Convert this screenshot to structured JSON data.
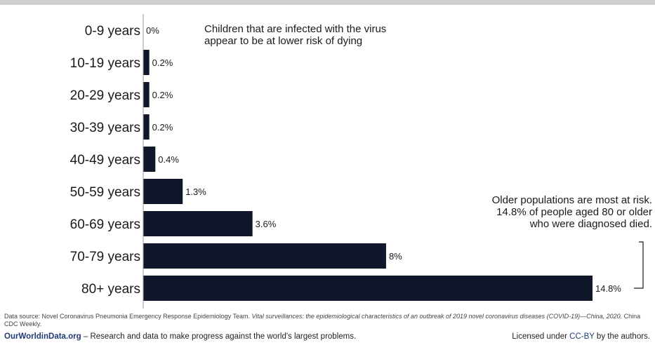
{
  "chart_data": {
    "type": "bar",
    "orientation": "horizontal",
    "categories": [
      "0-9 years",
      "10-19 years",
      "20-29 years",
      "30-39 years",
      "40-49 years",
      "50-59 years",
      "60-69 years",
      "70-79 years",
      "80+ years"
    ],
    "values": [
      0,
      0.2,
      0.2,
      0.2,
      0.4,
      1.3,
      3.6,
      8,
      14.8
    ],
    "value_labels": [
      "0%",
      "0.2%",
      "0.2%",
      "0.2%",
      "0.4%",
      "1.3%",
      "3.6%",
      "8%",
      "14.8%"
    ],
    "xlim": [
      0,
      14.8
    ],
    "bar_color": "#10172a",
    "grid": false,
    "annotations": [
      {
        "id": "children-note",
        "lines": [
          "Children that are infected with the virus",
          "appear to be at lower risk of dying"
        ]
      },
      {
        "id": "older-note",
        "lines": [
          "Older populations are most at risk.",
          "14.8% of people aged 80 or older",
          "who were diagnosed died."
        ]
      }
    ]
  },
  "footer": {
    "source_label": "Data source: Novel Coronavirus Pneumonia Emergency Response Epidemiology Team.",
    "source_title": "Vital surveillances: the epidemiological characteristics of an outbreak of 2019 novel coronavirus diseases (COVID-19)—China, 2020.",
    "source_journal": "China CDC Weekly.",
    "site": "OurWorldinData.org",
    "tagline": "– Research and data to make progress against the world's largest problems.",
    "license_prefix": "Licensed under",
    "license_link": "CC-BY",
    "license_suffix": "by the authors."
  }
}
